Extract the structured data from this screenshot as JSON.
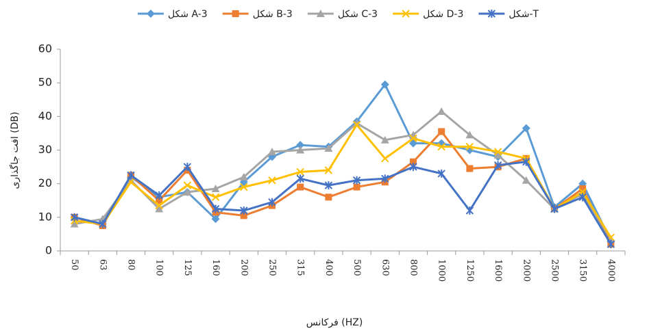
{
  "chart_data": {
    "type": "line",
    "x_label": "فرکانس (HZ)",
    "y_label": "افت جاگذاری (DB)",
    "categories": [
      "50",
      "63",
      "80",
      "100",
      "125",
      "160",
      "200",
      "250",
      "315",
      "400",
      "500",
      "630",
      "800",
      "1000",
      "1250",
      "1600",
      "2000",
      "2500",
      "3150",
      "4000"
    ],
    "series": [
      {
        "name": "شکل A-3",
        "color": "#5b9bd5",
        "marker": "diamond",
        "values": [
          10,
          8,
          22,
          16,
          17.5,
          9.5,
          20.5,
          28,
          31.5,
          31,
          38.5,
          49.5,
          32,
          32,
          30,
          28,
          36.5,
          13,
          20,
          3
        ]
      },
      {
        "name": "شکل B-3",
        "color": "#ed7d31",
        "marker": "square",
        "values": [
          10,
          7.5,
          22.5,
          15,
          24,
          11.5,
          10.5,
          13.5,
          19,
          16,
          19,
          20.5,
          26.5,
          35.5,
          24.5,
          25,
          27.5,
          12.5,
          18.5,
          2
        ]
      },
      {
        "name": "شکل C-3",
        "color": "#a5a5a5",
        "marker": "triangle",
        "values": [
          8,
          9.5,
          21,
          12.5,
          17.5,
          18.5,
          22,
          29.5,
          30,
          30.5,
          38,
          33,
          34.5,
          41.5,
          34.5,
          28.5,
          21,
          12.5,
          17,
          3.5
        ]
      },
      {
        "name": "شکل D-3",
        "color": "#ffc000",
        "marker": "x",
        "values": [
          9,
          8,
          20.5,
          13.5,
          19.5,
          16,
          19,
          21,
          23.5,
          24,
          37.5,
          27.5,
          33.5,
          31,
          31,
          29.5,
          27.5,
          12.5,
          17.5,
          4
        ]
      },
      {
        "name": "شکل-T",
        "color": "#4472c4",
        "marker": "star",
        "values": [
          10,
          8,
          22.5,
          16.5,
          25,
          12.5,
          12,
          14.5,
          21.5,
          19.5,
          21,
          21.5,
          25,
          23,
          12,
          25.5,
          26.5,
          12.5,
          16,
          2
        ]
      }
    ],
    "ylim": [
      0,
      60
    ],
    "yticks": [
      0,
      10,
      20,
      30,
      40,
      50,
      60
    ],
    "grid": false,
    "legend": "top"
  }
}
